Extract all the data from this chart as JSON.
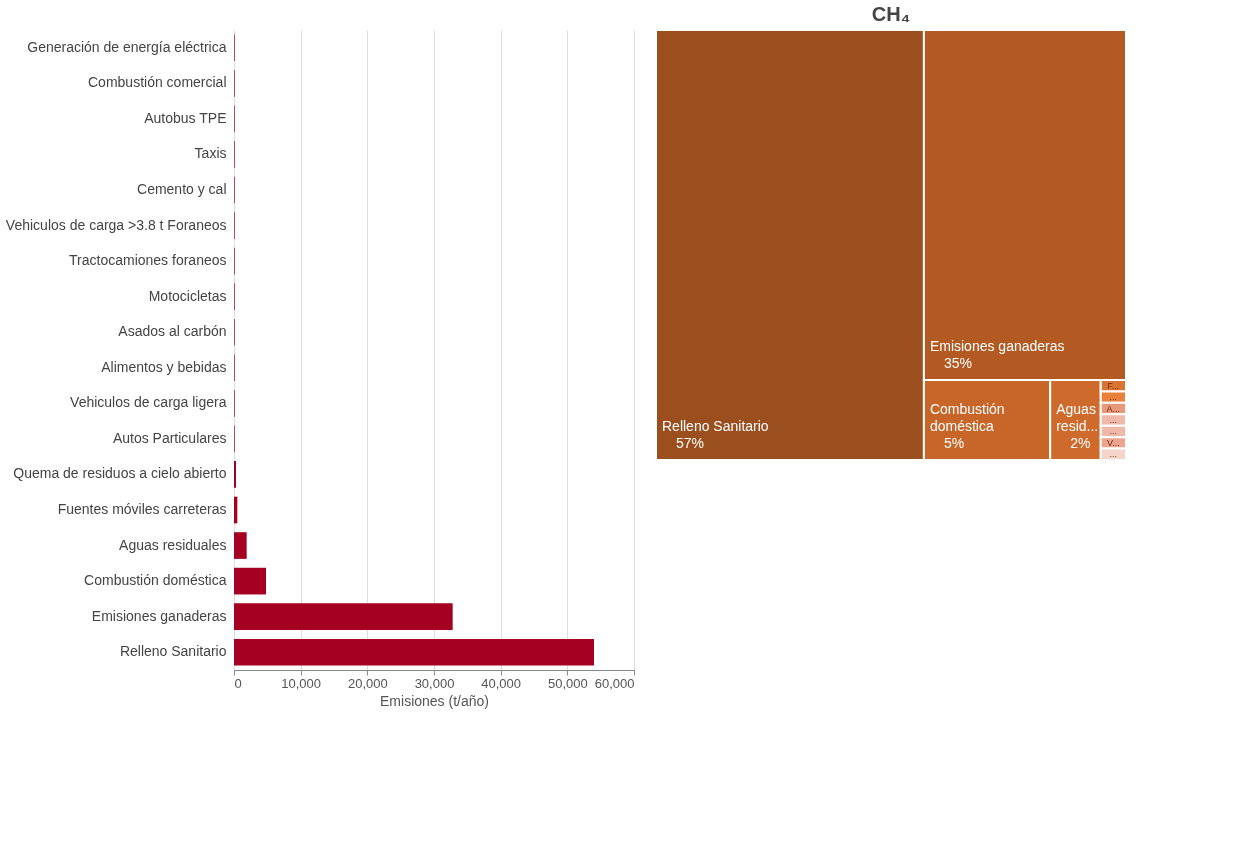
{
  "chart_data": [
    {
      "type": "bar",
      "orientation": "horizontal",
      "xlabel": "Emisiones (t/año)",
      "categories": [
        "Generación de energía eléctrica",
        "Combustión comercial",
        "Autobus TPE",
        "Taxis",
        "Cemento y cal",
        "Vehiculos de carga >3.8 t Foraneos",
        "Tractocamiones foraneos",
        "Motocicletas",
        "Asados al carbón",
        "Alimentos y bebidas",
        "Vehiculos de carga ligera",
        "Autos Particulares",
        "Quema de residuos a cielo abierto",
        "Fuentes móviles carreteras",
        "Aguas residuales",
        "Combustión doméstica",
        "Emisiones ganaderas",
        "Relleno Sanitario"
      ],
      "values": [
        100,
        100,
        100,
        100,
        100,
        100,
        100,
        100,
        100,
        100,
        100,
        100,
        300,
        500,
        1900,
        4800,
        32800,
        54000
      ],
      "color": "#a50021",
      "xlim": [
        0,
        60000
      ],
      "xticks": [
        0,
        {
          "value": 10000,
          "label": "10,000"
        },
        {
          "value": 20000,
          "label": "20,000"
        },
        {
          "value": 30000,
          "label": "30,000"
        },
        {
          "value": 40000,
          "label": "40,000"
        },
        {
          "value": 50000,
          "label": "50,000"
        },
        {
          "value": 60000,
          "label": "60,000"
        }
      ],
      "grid": "x"
    },
    {
      "type": "other",
      "title": "CH₄",
      "categories": [
        "Relleno Sanitario",
        "Emisiones ganaderas",
        "Combustión doméstica",
        "Aguas resid...",
        "F...",
        "...",
        "A...",
        "...",
        "...",
        "V...",
        "..."
      ],
      "values": [
        57,
        35,
        5,
        2,
        null,
        null,
        null,
        null,
        null,
        null,
        null
      ],
      "value_labels": [
        "57%",
        "35%",
        "5%",
        "2%",
        null,
        null,
        null,
        null,
        null,
        null,
        null
      ],
      "colors": [
        "#9c4f1e",
        "#b35a22",
        "#c8662a",
        "#cd6a2c",
        "#d97533",
        "#e8823a",
        "#e8997c",
        "#f0b8a8",
        "#f0b8a8",
        "#eea58f",
        "#f5d4ca"
      ]
    }
  ]
}
